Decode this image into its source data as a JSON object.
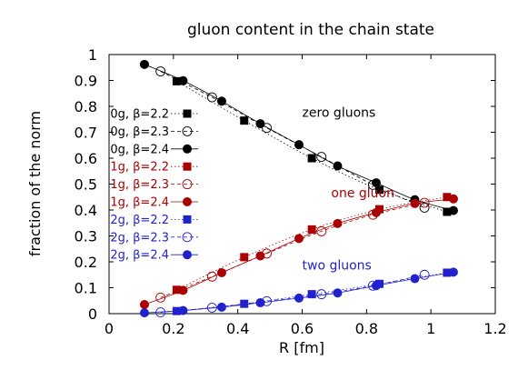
{
  "chart_data": {
    "type": "scatter",
    "title": "gluon content in the chain state",
    "xlabel": "R [fm]",
    "ylabel": "fraction of the norm",
    "xlim": [
      0,
      1.2
    ],
    "ylim": [
      0,
      1
    ],
    "xticks": [
      "0",
      "0.2",
      "0.4",
      "0.6",
      "0.8",
      "1",
      "1.2"
    ],
    "yticks": [
      "0",
      "0.1",
      "0.2",
      "0.3",
      "0.4",
      "0.5",
      "0.6",
      "0.7",
      "0.8",
      "0.9",
      "1"
    ],
    "grid": false,
    "legend_position": "left",
    "colors": {
      "zero": "#000000",
      "one": "#aa0000",
      "two": "#2222cc"
    },
    "annotations": [
      {
        "text": "zero gluons",
        "x": 0.6,
        "y": 0.76,
        "color": "#000000"
      },
      {
        "text": "one gluon",
        "x": 0.69,
        "y": 0.45,
        "color": "#aa0000"
      },
      {
        "text": "two gluons",
        "x": 0.6,
        "y": 0.17,
        "color": "#2222cc"
      }
    ],
    "series": [
      {
        "name": "0g, β=2.2",
        "color": "#000000",
        "marker": "square-filled",
        "x": [
          0.21,
          0.42,
          0.63,
          0.84,
          1.05
        ],
        "y": [
          0.897,
          0.745,
          0.6,
          0.478,
          0.393
        ]
      },
      {
        "name": "0g, β=2.3",
        "color": "#000000",
        "marker": "circle-open",
        "x": [
          0.16,
          0.32,
          0.49,
          0.66,
          0.82,
          0.98
        ],
        "y": [
          0.935,
          0.835,
          0.717,
          0.605,
          0.497,
          0.409
        ]
      },
      {
        "name": "0g, β=2.4",
        "color": "#000000",
        "marker": "circle-filled",
        "x": [
          0.11,
          0.23,
          0.35,
          0.47,
          0.59,
          0.71,
          0.83,
          0.95,
          1.07
        ],
        "y": [
          0.962,
          0.899,
          0.82,
          0.733,
          0.652,
          0.57,
          0.505,
          0.44,
          0.398
        ]
      },
      {
        "name": "1g, β=2.2",
        "color": "#aa0000",
        "marker": "square-filled",
        "x": [
          0.21,
          0.42,
          0.63,
          0.84,
          1.05
        ],
        "y": [
          0.092,
          0.218,
          0.325,
          0.403,
          0.45
        ]
      },
      {
        "name": "1g, β=2.3",
        "color": "#aa0000",
        "marker": "circle-open",
        "x": [
          0.16,
          0.32,
          0.49,
          0.66,
          0.82,
          0.98
        ],
        "y": [
          0.062,
          0.143,
          0.232,
          0.318,
          0.382,
          0.428
        ]
      },
      {
        "name": "1g, β=2.4",
        "color": "#aa0000",
        "marker": "circle-filled",
        "x": [
          0.11,
          0.23,
          0.35,
          0.47,
          0.59,
          0.71,
          0.83,
          0.95,
          1.07
        ],
        "y": [
          0.035,
          0.09,
          0.158,
          0.223,
          0.29,
          0.348,
          0.39,
          0.425,
          0.443
        ]
      },
      {
        "name": "2g, β=2.2",
        "color": "#2222cc",
        "marker": "square-filled",
        "x": [
          0.21,
          0.42,
          0.63,
          0.84,
          1.05
        ],
        "y": [
          0.01,
          0.038,
          0.075,
          0.115,
          0.158
        ]
      },
      {
        "name": "2g, β=2.3",
        "color": "#2222cc",
        "marker": "circle-open",
        "x": [
          0.16,
          0.32,
          0.49,
          0.66,
          0.82,
          0.98
        ],
        "y": [
          0.005,
          0.023,
          0.048,
          0.075,
          0.108,
          0.15
        ]
      },
      {
        "name": "2g, β=2.4",
        "color": "#2222cc",
        "marker": "circle-filled",
        "x": [
          0.11,
          0.23,
          0.35,
          0.47,
          0.59,
          0.71,
          0.83,
          0.95,
          1.07
        ],
        "y": [
          0.003,
          0.012,
          0.025,
          0.042,
          0.06,
          0.08,
          0.108,
          0.135,
          0.16
        ]
      }
    ]
  }
}
